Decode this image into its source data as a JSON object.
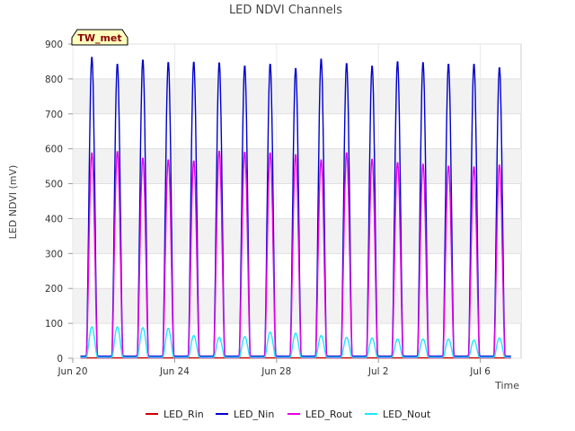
{
  "chart_data": {
    "type": "line",
    "title": "LED NDVI Channels",
    "xlabel": "Time",
    "ylabel": "LED NDVI (mV)",
    "badge": "TW_met",
    "ylim": [
      0,
      900
    ],
    "yticks": [
      0,
      100,
      200,
      300,
      400,
      500,
      600,
      700,
      800,
      900
    ],
    "xlim": [
      0,
      17.6
    ],
    "xticks": [
      {
        "value": 0,
        "label": "Jun 20"
      },
      {
        "value": 4,
        "label": "Jun 24"
      },
      {
        "value": 8,
        "label": "Jun 28"
      },
      {
        "value": 12,
        "label": "Jul 2"
      },
      {
        "value": 16,
        "label": "Jul 6"
      }
    ],
    "grid": true,
    "legend_position": "bottom",
    "day_peak_x": [
      0.75,
      1.75,
      2.75,
      3.75,
      4.75,
      5.75,
      6.75,
      7.75,
      8.75,
      9.75,
      10.75,
      11.75,
      12.75,
      13.75,
      14.75,
      15.75,
      16.75
    ],
    "series": [
      {
        "name": "LED_Rin",
        "color": "#cc0000",
        "peaks": [
          0,
          0,
          0,
          0,
          0,
          0,
          0,
          0,
          0,
          0,
          0,
          0,
          0,
          0,
          0,
          0,
          0
        ]
      },
      {
        "name": "LED_Nin",
        "color": "#0000cc",
        "peaks": [
          865,
          845,
          857,
          850,
          851,
          849,
          840,
          845,
          833,
          860,
          847,
          840,
          852,
          850,
          845,
          845,
          835
        ]
      },
      {
        "name": "LED_Rout",
        "color": "#e600e6",
        "peaks": [
          590,
          594,
          575,
          570,
          567,
          595,
          592,
          590,
          585,
          570,
          590,
          572,
          562,
          558,
          552,
          550,
          555
        ]
      },
      {
        "name": "LED_Nout",
        "color": "#1ee6ff",
        "peaks": [
          90,
          90,
          88,
          86,
          65,
          60,
          62,
          75,
          72,
          65,
          60,
          58,
          55,
          55,
          55,
          52,
          58
        ]
      }
    ]
  }
}
